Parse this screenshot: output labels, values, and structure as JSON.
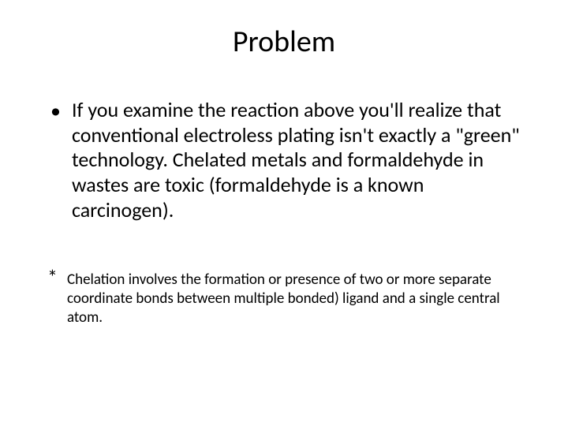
{
  "slide": {
    "title": "Problem",
    "bullet": {
      "marker": "•",
      "text": "If you examine the reaction above you'll realize that conventional electroless plating isn't exactly a \"green\" technology. Chelated metals and formaldehyde in wastes are toxic (formaldehyde is a known carcinogen)."
    },
    "footnote": {
      "marker": "*",
      "text": "Chelation involves the formation or presence of two or more separate coordinate bonds between multiple bonded) ligand and a single central atom."
    }
  },
  "style": {
    "background_color": "#ffffff",
    "text_color": "#000000",
    "title_fontsize": 38,
    "body_fontsize": 26,
    "footnote_fontsize": 19,
    "font_family": "Calibri"
  }
}
